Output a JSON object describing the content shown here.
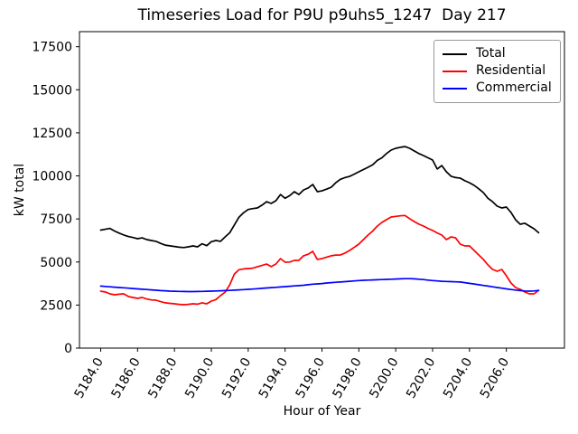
{
  "figure": {
    "background": "#ffffff",
    "title": "Timeseries Load for P9U p9uhs5_1247  Day 217",
    "xlabel": "Hour of Year",
    "ylabel": "kW total"
  },
  "legend": {
    "position": "upper right",
    "entries": [
      {
        "label": "Total",
        "color": "#000000"
      },
      {
        "label": "Residential",
        "color": "#ff0000"
      },
      {
        "label": "Commercial",
        "color": "#0000ff"
      }
    ]
  },
  "chart_data": {
    "type": "line",
    "title": "Timeseries Load for P9U p9uhs5_1247  Day 217",
    "xlabel": "Hour of Year",
    "ylabel": "kW total",
    "grid": false,
    "legend_position": "upper right",
    "xlim": [
      5182.85,
      5209.15
    ],
    "ylim": [
      0,
      18375
    ],
    "x_ticks": [
      5184.0,
      5186.0,
      5188.0,
      5190.0,
      5192.0,
      5194.0,
      5196.0,
      5198.0,
      5200.0,
      5202.0,
      5204.0,
      5206.0
    ],
    "x_tick_format_decimals": 1,
    "x_tick_rotation_deg": 60,
    "y_ticks": [
      0,
      2500,
      5000,
      7500,
      10000,
      12500,
      15000,
      17500
    ],
    "x": {
      "start": 5184.0,
      "step": 0.25,
      "count": 96,
      "unit": "hour of year"
    },
    "series": [
      {
        "name": "Total",
        "color": "#000000",
        "values": [
          6850,
          6900,
          6950,
          6800,
          6680,
          6570,
          6480,
          6420,
          6350,
          6400,
          6300,
          6250,
          6200,
          6080,
          5980,
          5940,
          5900,
          5860,
          5840,
          5880,
          5930,
          5880,
          6060,
          5950,
          6180,
          6250,
          6200,
          6460,
          6700,
          7150,
          7600,
          7860,
          8050,
          8100,
          8140,
          8300,
          8500,
          8400,
          8560,
          8920,
          8700,
          8850,
          9080,
          8920,
          9180,
          9300,
          9500,
          9080,
          9130,
          9230,
          9340,
          9600,
          9800,
          9900,
          9970,
          10100,
          10240,
          10370,
          10500,
          10640,
          10900,
          11050,
          11300,
          11500,
          11600,
          11660,
          11700,
          11600,
          11450,
          11300,
          11180,
          11050,
          10920,
          10400,
          10600,
          10240,
          9980,
          9900,
          9870,
          9720,
          9600,
          9450,
          9250,
          9030,
          8700,
          8500,
          8240,
          8140,
          8190,
          7880,
          7450,
          7190,
          7250,
          7090,
          6930,
          6700
        ]
      },
      {
        "name": "Residential",
        "color": "#ff0000",
        "values": [
          3300,
          3260,
          3150,
          3100,
          3130,
          3150,
          3000,
          2940,
          2890,
          2940,
          2850,
          2800,
          2780,
          2700,
          2630,
          2600,
          2570,
          2540,
          2520,
          2540,
          2570,
          2550,
          2630,
          2570,
          2730,
          2820,
          3050,
          3250,
          3675,
          4300,
          4550,
          4600,
          4620,
          4640,
          4720,
          4800,
          4880,
          4730,
          4880,
          5200,
          4990,
          5000,
          5090,
          5100,
          5360,
          5450,
          5620,
          5150,
          5200,
          5280,
          5360,
          5400,
          5410,
          5520,
          5670,
          5850,
          6040,
          6300,
          6560,
          6800,
          7090,
          7300,
          7460,
          7610,
          7650,
          7680,
          7700,
          7520,
          7350,
          7200,
          7090,
          6950,
          6830,
          6690,
          6560,
          6300,
          6460,
          6400,
          6040,
          5930,
          5930,
          5670,
          5410,
          5150,
          4830,
          4570,
          4460,
          4570,
          4200,
          3780,
          3520,
          3410,
          3260,
          3150,
          3150,
          3350
        ]
      },
      {
        "name": "Commercial",
        "color": "#0000ff",
        "values": [
          3600,
          3580,
          3560,
          3540,
          3520,
          3500,
          3480,
          3460,
          3440,
          3420,
          3400,
          3380,
          3360,
          3340,
          3330,
          3310,
          3300,
          3290,
          3285,
          3280,
          3280,
          3285,
          3290,
          3300,
          3310,
          3320,
          3330,
          3340,
          3350,
          3365,
          3380,
          3395,
          3410,
          3430,
          3450,
          3470,
          3490,
          3510,
          3530,
          3550,
          3570,
          3590,
          3610,
          3630,
          3650,
          3680,
          3710,
          3730,
          3750,
          3780,
          3800,
          3820,
          3840,
          3860,
          3880,
          3900,
          3920,
          3940,
          3950,
          3960,
          3970,
          3980,
          3990,
          4000,
          4010,
          4020,
          4030,
          4030,
          4020,
          4000,
          3980,
          3950,
          3920,
          3900,
          3880,
          3870,
          3860,
          3850,
          3840,
          3800,
          3760,
          3720,
          3680,
          3640,
          3600,
          3560,
          3520,
          3480,
          3440,
          3400,
          3370,
          3340,
          3320,
          3310,
          3320,
          3350
        ]
      }
    ]
  }
}
